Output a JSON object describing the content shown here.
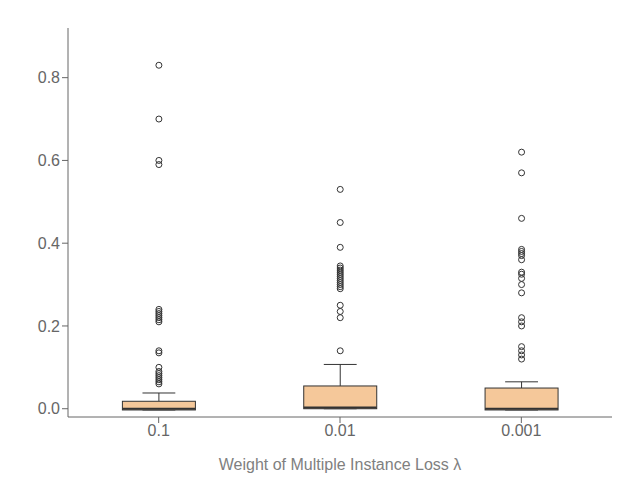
{
  "chart_data": {
    "type": "box",
    "xlabel": "Weight of Multiple Instance Loss λ",
    "categories": [
      "0.1",
      "0.01",
      "0.001"
    ],
    "color": "#F5C89A",
    "ylim": [
      -0.02,
      0.92
    ],
    "yticks": [
      {
        "value": 0.0,
        "label": "0.0"
      },
      0.2,
      0.4,
      0.6,
      0.8
    ],
    "grid": false,
    "boxes": [
      {
        "q1": -0.003,
        "median": 0.0,
        "q3": 0.018,
        "whisker_low": -0.003,
        "whisker_high": 0.038,
        "fliers": [
          0.06,
          0.065,
          0.07,
          0.075,
          0.08,
          0.085,
          0.09,
          0.1,
          0.135,
          0.14,
          0.21,
          0.215,
          0.22,
          0.225,
          0.23,
          0.235,
          0.24,
          0.59,
          0.6,
          0.7,
          0.83
        ]
      },
      {
        "q1": 0.0,
        "median": 0.003,
        "q3": 0.055,
        "whisker_low": 0.0,
        "whisker_high": 0.107,
        "fliers": [
          0.14,
          0.22,
          0.235,
          0.25,
          0.29,
          0.295,
          0.3,
          0.305,
          0.31,
          0.315,
          0.32,
          0.325,
          0.33,
          0.335,
          0.34,
          0.345,
          0.39,
          0.45,
          0.53
        ]
      },
      {
        "q1": -0.003,
        "median": 0.0,
        "q3": 0.05,
        "whisker_low": -0.003,
        "whisker_high": 0.065,
        "fliers": [
          0.12,
          0.13,
          0.14,
          0.15,
          0.2,
          0.21,
          0.22,
          0.28,
          0.3,
          0.315,
          0.325,
          0.33,
          0.36,
          0.37,
          0.375,
          0.38,
          0.385,
          0.46,
          0.57,
          0.62
        ]
      }
    ]
  }
}
